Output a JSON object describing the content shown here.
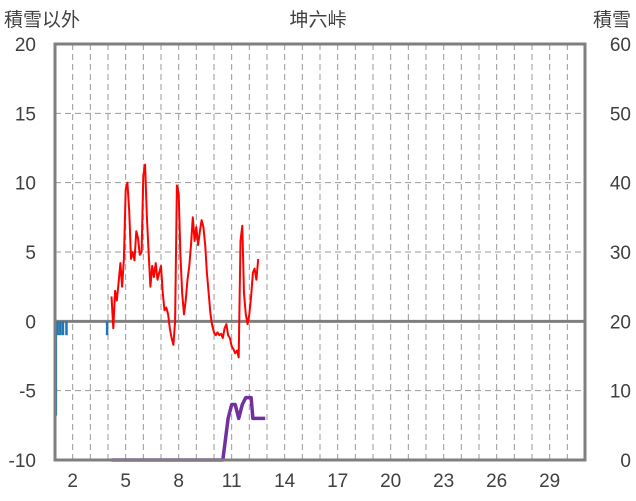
{
  "chart_data": {
    "type": "line",
    "title": "坤六峠",
    "left_axis_label": "積雪以外",
    "right_axis_label": "積雪",
    "y_left": {
      "min": -10,
      "max": 20,
      "ticks": [
        20,
        15,
        10,
        5,
        0,
        -5,
        -10
      ]
    },
    "y_right": {
      "min": 0,
      "max": 60,
      "ticks": [
        60,
        50,
        40,
        30,
        20,
        10,
        0
      ]
    },
    "x": {
      "min": 1,
      "max": 31,
      "tick_labels": [
        2,
        5,
        8,
        11,
        14,
        17,
        20,
        23,
        26,
        29
      ]
    },
    "grid": true,
    "colors": {
      "temperature": "#ff0000",
      "snow_depth": "#7030a0",
      "precipitation": "#1f77b4",
      "zero_line": "#7f7f7f",
      "grid": "#999999",
      "frame": "#7f7f7f"
    },
    "series": [
      {
        "axis": "left",
        "style": "line",
        "points": [
          [
            4.2,
            1.8
          ],
          [
            4.3,
            -0.5
          ],
          [
            4.4,
            2.2
          ],
          [
            4.5,
            1.5
          ],
          [
            4.6,
            2.8
          ],
          [
            4.7,
            4.2
          ],
          [
            4.8,
            2.5
          ],
          [
            4.9,
            4.5
          ],
          [
            5.0,
            9.5
          ],
          [
            5.1,
            10.0
          ],
          [
            5.2,
            8.0
          ],
          [
            5.3,
            4.5
          ],
          [
            5.4,
            5.0
          ],
          [
            5.5,
            4.4
          ],
          [
            5.6,
            6.5
          ],
          [
            5.7,
            6.0
          ],
          [
            5.8,
            4.8
          ],
          [
            5.9,
            5.0
          ],
          [
            6.0,
            10.5
          ],
          [
            6.1,
            11.3
          ],
          [
            6.2,
            7.5
          ],
          [
            6.3,
            5.0
          ],
          [
            6.4,
            2.5
          ],
          [
            6.5,
            4.0
          ],
          [
            6.6,
            3.2
          ],
          [
            6.7,
            4.2
          ],
          [
            6.8,
            3.0
          ],
          [
            6.9,
            3.5
          ],
          [
            7.0,
            4.0
          ],
          [
            7.1,
            2.0
          ],
          [
            7.2,
            0.8
          ],
          [
            7.3,
            1.0
          ],
          [
            7.4,
            0.5
          ],
          [
            7.5,
            -0.5
          ],
          [
            7.6,
            -1.2
          ],
          [
            7.7,
            -1.7
          ],
          [
            7.8,
            0.0
          ],
          [
            7.9,
            9.8
          ],
          [
            8.0,
            9.2
          ],
          [
            8.1,
            4.8
          ],
          [
            8.2,
            2.0
          ],
          [
            8.3,
            0.5
          ],
          [
            8.4,
            1.5
          ],
          [
            8.5,
            3.0
          ],
          [
            8.6,
            4.0
          ],
          [
            8.7,
            5.5
          ],
          [
            8.8,
            7.5
          ],
          [
            8.9,
            5.8
          ],
          [
            9.0,
            6.8
          ],
          [
            9.1,
            5.5
          ],
          [
            9.2,
            6.5
          ],
          [
            9.3,
            7.3
          ],
          [
            9.4,
            6.8
          ],
          [
            9.5,
            5.5
          ],
          [
            9.6,
            3.5
          ],
          [
            9.7,
            2.0
          ],
          [
            9.8,
            0.5
          ],
          [
            9.9,
            -0.3
          ],
          [
            10.0,
            -0.8
          ],
          [
            10.1,
            -1.0
          ],
          [
            10.2,
            -0.8
          ],
          [
            10.3,
            -1.0
          ],
          [
            10.4,
            -0.9
          ],
          [
            10.5,
            -1.2
          ],
          [
            10.6,
            -0.5
          ],
          [
            10.7,
            -0.2
          ],
          [
            10.8,
            -1.0
          ],
          [
            10.9,
            -1.2
          ],
          [
            11.0,
            -1.8
          ],
          [
            11.1,
            -2.0
          ],
          [
            11.2,
            -2.3
          ],
          [
            11.3,
            -2.1
          ],
          [
            11.4,
            -2.6
          ],
          [
            11.5,
            5.8
          ],
          [
            11.6,
            6.9
          ],
          [
            11.7,
            2.0
          ],
          [
            11.8,
            0.5
          ],
          [
            11.9,
            -0.2
          ],
          [
            12.0,
            0.5
          ],
          [
            12.1,
            1.8
          ],
          [
            12.2,
            3.5
          ],
          [
            12.3,
            3.8
          ],
          [
            12.4,
            3.0
          ],
          [
            12.5,
            4.5
          ]
        ]
      },
      {
        "axis": "right",
        "style": "line",
        "points": [
          [
            4.2,
            0
          ],
          [
            10.5,
            0
          ],
          [
            10.6,
            2
          ],
          [
            10.8,
            6
          ],
          [
            11.0,
            8
          ],
          [
            11.2,
            8
          ],
          [
            11.4,
            6
          ],
          [
            11.6,
            8
          ],
          [
            11.8,
            9
          ],
          [
            12.1,
            9
          ],
          [
            12.2,
            6
          ],
          [
            12.5,
            6
          ],
          [
            12.9,
            6
          ]
        ]
      },
      {
        "axis": "left",
        "style": "bars",
        "points": [
          [
            1.05,
            -6.8
          ],
          [
            1.15,
            -1.0
          ],
          [
            1.3,
            -1.0
          ],
          [
            1.45,
            -1.0
          ],
          [
            1.65,
            -1.0
          ],
          [
            3.95,
            -1.0
          ]
        ]
      }
    ]
  }
}
